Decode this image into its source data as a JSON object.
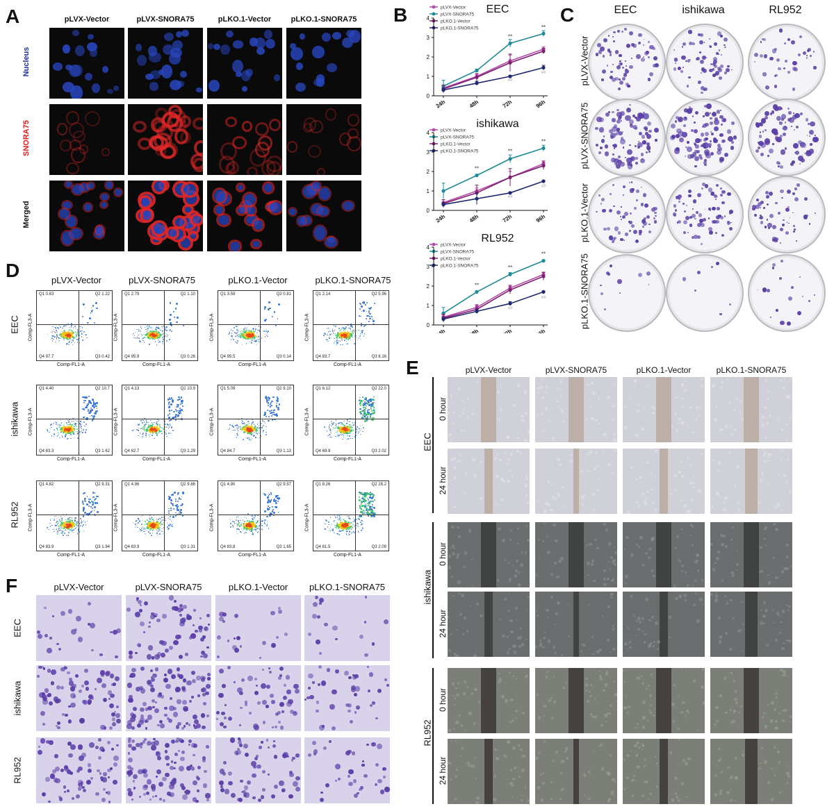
{
  "panels": {
    "A": {
      "letter": "A",
      "columns": [
        "pLVX-Vector",
        "pLVX-SNORA75",
        "pLKO.1-Vector",
        "pLKO.1-SNORA75"
      ],
      "rows": [
        "Nucleus",
        "SNORA75",
        "Merged"
      ],
      "row_colors": [
        "#1f2fa0",
        "#e02020",
        "#111111"
      ]
    },
    "B": {
      "letter": "B"
    },
    "C": {
      "letter": "C",
      "columns": [
        "EEC",
        "ishikawa",
        "RL952"
      ],
      "rows": [
        "pLVX-Vector",
        "pLVX-SNORA75",
        "pLKO.1-Vector",
        "pLKO.1-SNORA75"
      ]
    },
    "D": {
      "letter": "D",
      "columns": [
        "pLVX-Vector",
        "pLVX-SNORA75",
        "pLKO.1-Vector",
        "pLKO.1-SNORA75"
      ],
      "rows": [
        "EEC",
        "ishikawa",
        "RL952"
      ],
      "x_axis_label": "Comp-FL1-A",
      "y_axis_label": "Comp-FL3-A",
      "quadrant_names": [
        "Q1",
        "Q2",
        "Q3",
        "Q4"
      ],
      "quadrant_values": [
        [
          [
            "0.63",
            "1.22",
            "0.42",
            "97.7"
          ],
          [
            "2.79",
            "1.10",
            "0.26",
            "95.9"
          ],
          [
            "3.59",
            "0.81",
            "0.14",
            "95.5"
          ],
          [
            "2.14",
            "5.96",
            "8.16",
            "83.7"
          ]
        ],
        [
          [
            "4.40",
            "10.7",
            "1.62",
            "83.3"
          ],
          [
            "4.13",
            "10.9",
            "2.29",
            "82.7"
          ],
          [
            "5.09",
            "9.10",
            "1.13",
            "84.7"
          ],
          [
            "6.12",
            "22.0",
            "2.02",
            "69.9"
          ]
        ],
        [
          [
            "4.82",
            "9.31",
            "1.94",
            "83.9"
          ],
          [
            "4.96",
            "9.86",
            "1.31",
            "83.9"
          ],
          [
            "4.90",
            "9.57",
            "1.65",
            "83.8"
          ],
          [
            "8.26",
            "28.2",
            "2.09",
            "61.5"
          ]
        ]
      ]
    },
    "E": {
      "letter": "E",
      "columns": [
        "pLVX-Vector",
        "pLVX-SNORA75",
        "pLKO.1-Vector",
        "pLKO.1-SNORA75"
      ],
      "cell_lines": [
        "EEC",
        "ishikawa",
        "RL952"
      ],
      "timepoints": [
        "0 hour",
        "24 hour"
      ]
    },
    "F": {
      "letter": "F",
      "columns": [
        "pLVX-Vector",
        "pLVX-SNORA75",
        "pLKO.1-Vector",
        "pLKO.1-SNORA75"
      ],
      "rows": [
        "EEC",
        "ishikawa",
        "RL952"
      ]
    }
  },
  "chart_data": [
    {
      "type": "line",
      "title": "EEC",
      "categories": [
        "24h",
        "48h",
        "72h",
        "96h"
      ],
      "ylim": [
        0,
        4
      ],
      "yticks": [
        0,
        1,
        2,
        3,
        4
      ],
      "series": [
        {
          "name": "pLVX-Vector",
          "color": "#b44aa8",
          "values": [
            0.4,
            1.0,
            1.8,
            2.4
          ],
          "err": [
            0.15,
            0.1,
            0.3,
            0.12
          ]
        },
        {
          "name": "pLVX-SNORA75",
          "color": "#1b8a96",
          "values": [
            0.5,
            1.3,
            2.7,
            3.2
          ],
          "err": [
            0.3,
            0.08,
            0.2,
            0.15
          ]
        },
        {
          "name": "pLKO.1-Vector",
          "color": "#7b1f6e",
          "values": [
            0.35,
            0.95,
            1.7,
            2.3
          ],
          "err": [
            0.2,
            0.2,
            0.45,
            0.15
          ]
        },
        {
          "name": "pLKO.1-SNORA75",
          "color": "#1f2a6e",
          "values": [
            0.3,
            0.65,
            1.0,
            1.45
          ],
          "err": [
            0.1,
            0.1,
            0.05,
            0.12
          ]
        }
      ],
      "annotations": [
        {
          "x": "72h",
          "text": "**",
          "at": 2.95
        },
        {
          "x": "96h",
          "text": "**",
          "at": 3.42
        },
        {
          "x": "72h",
          "text": "##",
          "at": 0.75
        },
        {
          "x": "96h",
          "text": "##",
          "at": 1.15
        }
      ]
    },
    {
      "type": "line",
      "title": "ishikawa",
      "categories": [
        "24h",
        "48h",
        "72h",
        "96h"
      ],
      "ylim": [
        0,
        4
      ],
      "yticks": [
        0,
        1,
        2,
        3,
        4
      ],
      "series": [
        {
          "name": "pLVX-Vector",
          "color": "#b44aa8",
          "values": [
            0.4,
            1.0,
            1.7,
            2.4
          ],
          "err": [
            0.15,
            0.15,
            0.3,
            0.15
          ]
        },
        {
          "name": "pLVX-SNORA75",
          "color": "#1b8a96",
          "values": [
            1.0,
            1.8,
            2.65,
            3.2
          ],
          "err": [
            0.4,
            0.05,
            0.2,
            0.15
          ]
        },
        {
          "name": "pLKO.1-Vector",
          "color": "#7b1f6e",
          "values": [
            0.35,
            0.9,
            1.7,
            2.3
          ],
          "err": [
            0.2,
            0.4,
            0.45,
            0.2
          ]
        },
        {
          "name": "pLKO.1-SNORA75",
          "color": "#1f2a6e",
          "values": [
            0.3,
            0.6,
            0.9,
            1.5
          ],
          "err": [
            0.1,
            0.3,
            0.05,
            0.05
          ]
        }
      ],
      "annotations": [
        {
          "x": "48h",
          "text": "**",
          "at": 2.05
        },
        {
          "x": "72h",
          "text": "**",
          "at": 2.95
        },
        {
          "x": "96h",
          "text": "**",
          "at": 3.45
        },
        {
          "x": "72h",
          "text": "##",
          "at": 0.65
        },
        {
          "x": "96h",
          "text": "##",
          "at": 1.2
        }
      ]
    },
    {
      "type": "line",
      "title": "RL952",
      "categories": [
        "24h",
        "48h",
        "72h",
        "96h"
      ],
      "ylim": [
        0,
        4
      ],
      "yticks": [
        0,
        1,
        2,
        3,
        4
      ],
      "series": [
        {
          "name": "pLVX-Vector",
          "color": "#b44aa8",
          "values": [
            0.4,
            0.9,
            1.9,
            2.6
          ],
          "err": [
            0.1,
            0.15,
            0.15,
            0.12
          ]
        },
        {
          "name": "pLVX-SNORA75",
          "color": "#1b8a96",
          "values": [
            0.6,
            1.7,
            2.6,
            3.3
          ],
          "err": [
            0.3,
            0.05,
            0.1,
            0.05
          ]
        },
        {
          "name": "pLKO.1-Vector",
          "color": "#7b1f6e",
          "values": [
            0.35,
            0.8,
            1.8,
            2.5
          ],
          "err": [
            0.2,
            0.2,
            0.2,
            0.2
          ]
        },
        {
          "name": "pLKO.1-SNORA75",
          "color": "#1f2a6e",
          "values": [
            0.3,
            0.7,
            1.1,
            1.7
          ],
          "err": [
            0.1,
            0.1,
            0.1,
            0.05
          ]
        }
      ],
      "annotations": [
        {
          "x": "48h",
          "text": "**",
          "at": 1.95
        },
        {
          "x": "72h",
          "text": "**",
          "at": 2.85
        },
        {
          "x": "96h",
          "text": "**",
          "at": 3.55
        },
        {
          "x": "72h",
          "text": "##",
          "at": 0.8
        },
        {
          "x": "96h",
          "text": "##",
          "at": 1.35
        }
      ]
    }
  ]
}
